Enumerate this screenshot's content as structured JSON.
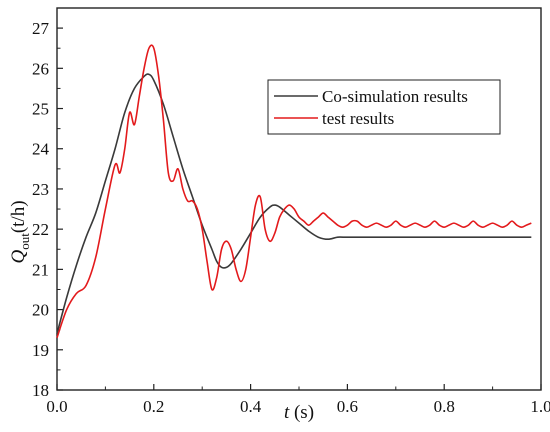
{
  "chart_data": {
    "type": "line",
    "xlabel_main": "t",
    "xlabel_unit": " (s)",
    "ylabel_main": "Q",
    "ylabel_sub": "out",
    "ylabel_unit": "(t/h)",
    "xlim": [
      0.0,
      1.0
    ],
    "ylim": [
      18,
      27.5
    ],
    "x_ticks": [
      "0.0",
      "0.2",
      "0.4",
      "0.6",
      "0.8",
      "1.0"
    ],
    "y_ticks": [
      "18",
      "19",
      "20",
      "21",
      "22",
      "23",
      "24",
      "25",
      "26",
      "27"
    ],
    "legend_position": "top-right",
    "series": [
      {
        "name": "Co-simulation results",
        "color": "#3a3a3a",
        "x": [
          0.0,
          0.02,
          0.04,
          0.06,
          0.08,
          0.1,
          0.12,
          0.14,
          0.16,
          0.18,
          0.19,
          0.2,
          0.22,
          0.24,
          0.26,
          0.28,
          0.3,
          0.32,
          0.33,
          0.34,
          0.35,
          0.36,
          0.38,
          0.4,
          0.42,
          0.44,
          0.45,
          0.46,
          0.48,
          0.5,
          0.52,
          0.54,
          0.56,
          0.58,
          0.6,
          0.7,
          0.8,
          0.9,
          0.98
        ],
        "y": [
          19.4,
          20.3,
          21.1,
          21.8,
          22.4,
          23.2,
          24.0,
          24.9,
          25.5,
          25.8,
          25.85,
          25.7,
          25.1,
          24.3,
          23.5,
          22.8,
          22.1,
          21.5,
          21.2,
          21.05,
          21.05,
          21.15,
          21.5,
          21.9,
          22.3,
          22.55,
          22.6,
          22.55,
          22.35,
          22.15,
          21.95,
          21.8,
          21.75,
          21.8,
          21.8,
          21.8,
          21.8,
          21.8,
          21.8
        ]
      },
      {
        "name": "test results",
        "color": "#e31a1c",
        "x": [
          0.0,
          0.02,
          0.04,
          0.06,
          0.08,
          0.1,
          0.12,
          0.13,
          0.14,
          0.15,
          0.16,
          0.17,
          0.18,
          0.19,
          0.2,
          0.21,
          0.22,
          0.23,
          0.24,
          0.25,
          0.26,
          0.27,
          0.28,
          0.29,
          0.3,
          0.31,
          0.32,
          0.33,
          0.34,
          0.35,
          0.36,
          0.37,
          0.38,
          0.39,
          0.4,
          0.41,
          0.42,
          0.43,
          0.44,
          0.45,
          0.46,
          0.47,
          0.48,
          0.49,
          0.5,
          0.51,
          0.52,
          0.53,
          0.54,
          0.55,
          0.56,
          0.57,
          0.58,
          0.59,
          0.6,
          0.61,
          0.62,
          0.63,
          0.64,
          0.65,
          0.66,
          0.67,
          0.68,
          0.69,
          0.7,
          0.71,
          0.72,
          0.73,
          0.74,
          0.75,
          0.76,
          0.77,
          0.78,
          0.79,
          0.8,
          0.81,
          0.82,
          0.83,
          0.84,
          0.85,
          0.86,
          0.87,
          0.88,
          0.89,
          0.9,
          0.91,
          0.92,
          0.93,
          0.94,
          0.95,
          0.96,
          0.97,
          0.98
        ],
        "y": [
          19.3,
          20.0,
          20.4,
          20.6,
          21.3,
          22.5,
          23.6,
          23.4,
          24.0,
          24.9,
          24.6,
          25.3,
          26.0,
          26.5,
          26.5,
          25.8,
          24.7,
          23.4,
          23.2,
          23.5,
          23.0,
          22.7,
          22.7,
          22.5,
          22.0,
          21.2,
          20.5,
          20.8,
          21.5,
          21.7,
          21.5,
          21.0,
          20.7,
          21.0,
          21.8,
          22.6,
          22.8,
          22.0,
          21.7,
          21.9,
          22.3,
          22.5,
          22.6,
          22.5,
          22.3,
          22.2,
          22.1,
          22.2,
          22.3,
          22.4,
          22.3,
          22.2,
          22.1,
          22.05,
          22.1,
          22.2,
          22.2,
          22.1,
          22.05,
          22.1,
          22.15,
          22.1,
          22.05,
          22.1,
          22.2,
          22.1,
          22.05,
          22.1,
          22.15,
          22.1,
          22.05,
          22.1,
          22.2,
          22.1,
          22.05,
          22.1,
          22.15,
          22.1,
          22.05,
          22.1,
          22.2,
          22.1,
          22.05,
          22.1,
          22.15,
          22.1,
          22.05,
          22.1,
          22.2,
          22.1,
          22.05,
          22.1,
          22.15
        ]
      }
    ]
  }
}
